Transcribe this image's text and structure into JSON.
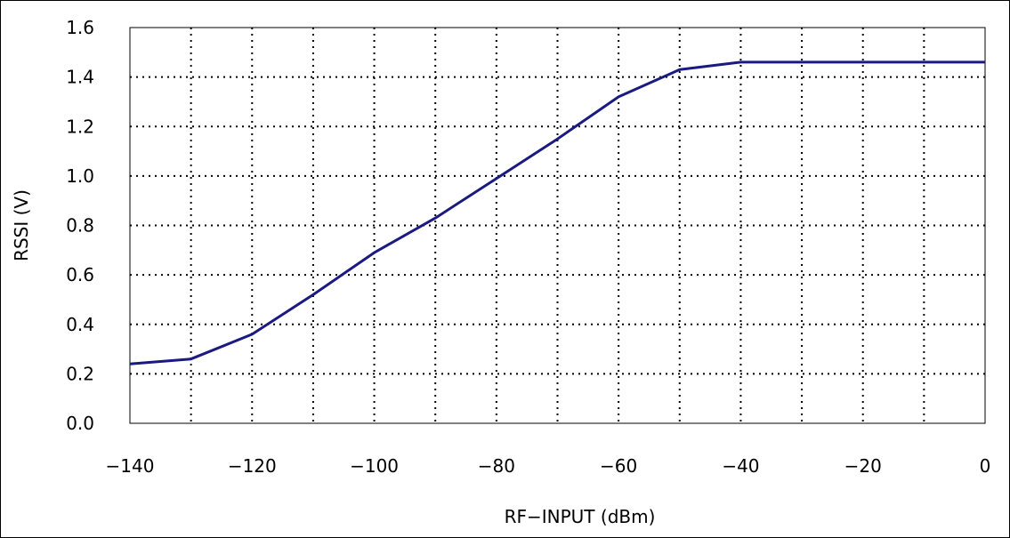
{
  "chart_data": {
    "type": "line",
    "title": "",
    "xlabel": "RF−INPUT (dBm)",
    "ylabel": "RSSI (V)",
    "xlim": [
      -140,
      0
    ],
    "ylim": [
      0.0,
      1.6
    ],
    "xticks": [
      -140,
      -120,
      -100,
      -80,
      -60,
      -40,
      -20,
      0
    ],
    "xtick_labels": [
      "−140",
      "−120",
      "−100",
      "−80",
      "−60",
      "−40",
      "−20",
      "0"
    ],
    "yticks": [
      0.0,
      0.2,
      0.4,
      0.6,
      0.8,
      1.0,
      1.2,
      1.4,
      1.6
    ],
    "ytick_labels": [
      "0.0",
      "0.2",
      "0.4",
      "0.6",
      "0.8",
      "1.0",
      "1.2",
      "1.4",
      "1.6"
    ],
    "grid": true,
    "grid_style": "dotted",
    "x_minor_grid_step": 10,
    "legend": "none",
    "colors": {
      "line": "#1a1a80",
      "grid": "#000000",
      "frame": "#000000"
    },
    "series": [
      {
        "x": [
          -140,
          -130,
          -120,
          -110,
          -100,
          -90,
          -80,
          -70,
          -60,
          -50,
          -40,
          -30,
          -20,
          -10,
          0
        ],
        "values": [
          0.24,
          0.26,
          0.36,
          0.52,
          0.69,
          0.83,
          0.99,
          1.15,
          1.32,
          1.43,
          1.46,
          1.46,
          1.46,
          1.46,
          1.46
        ]
      }
    ]
  }
}
